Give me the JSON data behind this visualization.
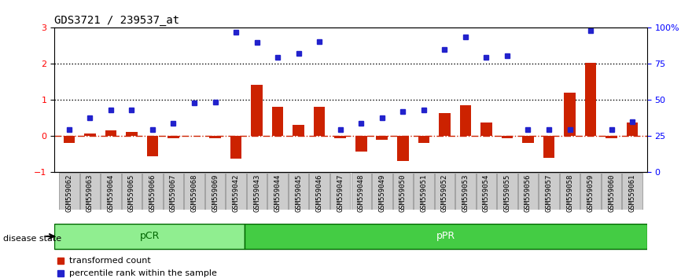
{
  "title": "GDS3721 / 239537_at",
  "samples": [
    "GSM559062",
    "GSM559063",
    "GSM559064",
    "GSM559065",
    "GSM559066",
    "GSM559067",
    "GSM559068",
    "GSM559069",
    "GSM559042",
    "GSM559043",
    "GSM559044",
    "GSM559045",
    "GSM559046",
    "GSM559047",
    "GSM559048",
    "GSM559049",
    "GSM559050",
    "GSM559051",
    "GSM559052",
    "GSM559053",
    "GSM559054",
    "GSM559055",
    "GSM559056",
    "GSM559057",
    "GSM559058",
    "GSM559059",
    "GSM559060",
    "GSM559061"
  ],
  "transformed_count": [
    -0.18,
    0.08,
    0.17,
    0.12,
    -0.55,
    -0.05,
    0.0,
    -0.05,
    -0.62,
    1.42,
    0.82,
    0.32,
    0.82,
    -0.05,
    -0.42,
    -0.1,
    -0.68,
    -0.18,
    0.65,
    0.85,
    0.38,
    -0.05,
    -0.18,
    -0.6,
    1.2,
    2.02,
    -0.05,
    0.38
  ],
  "percentile_rank": [
    0.18,
    0.52,
    0.72,
    0.72,
    0.18,
    0.35,
    0.92,
    0.95,
    2.88,
    2.6,
    2.18,
    2.3,
    2.62,
    0.18,
    0.35,
    0.52,
    0.68,
    0.72,
    2.4,
    2.75,
    2.18,
    2.22,
    0.18,
    0.18,
    0.18,
    2.92,
    0.18,
    0.4
  ],
  "pCR_count": 9,
  "pPR_count": 19,
  "ylim": [
    -1,
    3
  ],
  "right_ylim": [
    0,
    100
  ],
  "hline1": 2.0,
  "hline2": 1.0,
  "bar_color": "#cc2200",
  "dot_color": "#2222cc",
  "pCR_color": "#90ee90",
  "pPR_color": "#44cc44",
  "axis_bg": "#dddddd",
  "disease_state_label": "disease state",
  "legend_bar": "transformed count",
  "legend_dot": "percentile rank within the sample"
}
